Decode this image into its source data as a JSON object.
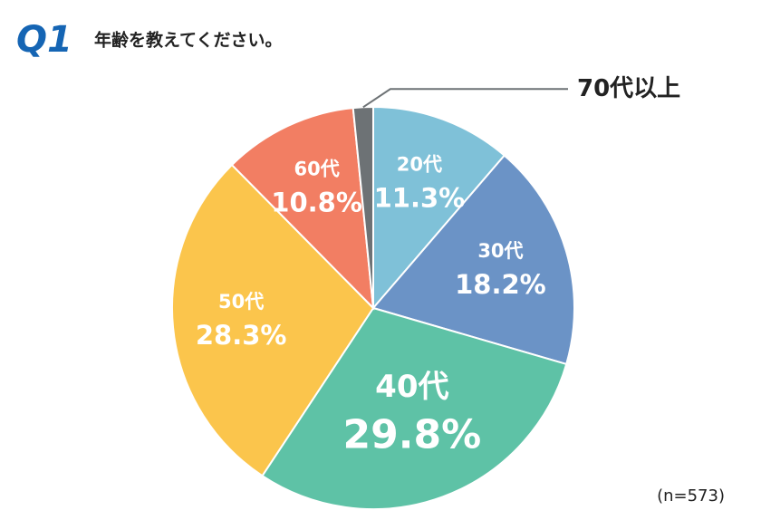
{
  "chart_data": {
    "type": "pie",
    "badge": "Q1",
    "title": "年齢を教えてください。",
    "note": "(n=573)",
    "categories": [
      "20代",
      "30代",
      "40代",
      "50代",
      "60代",
      "70代以上"
    ],
    "values": [
      11.3,
      18.2,
      29.8,
      28.3,
      10.8,
      1.6
    ],
    "value_labels": [
      "11.3%",
      "18.2%",
      "29.8%",
      "28.3%",
      "10.8%",
      null
    ],
    "colors": [
      "#7fc1d8",
      "#6b93c6",
      "#5ec2a6",
      "#fbc54c",
      "#f27e63",
      "#6d7275"
    ]
  }
}
